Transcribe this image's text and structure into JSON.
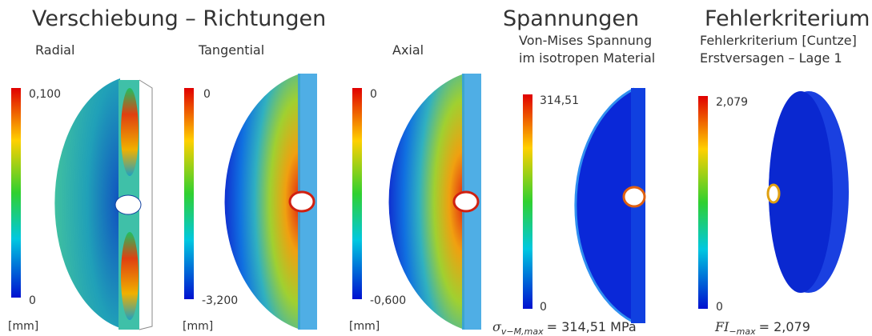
{
  "sections": [
    {
      "title": "Verschiebung – Richtungen",
      "panels": [
        {
          "label": "Radial",
          "scale_max": "0,100",
          "scale_min": "0",
          "unit": "[mm]"
        },
        {
          "label": "Tangential",
          "scale_max": "0",
          "scale_min": "-3,200",
          "unit": "[mm]"
        },
        {
          "label": "Axial",
          "scale_max": "0",
          "scale_min": "-0,600",
          "unit": "[mm]"
        }
      ]
    },
    {
      "title": "Spannungen",
      "subtitle": [
        "Von-Mises Spannung",
        "im isotropen Material"
      ],
      "scale_max": "314,51",
      "scale_min": "0",
      "formula": {
        "symbol": "σ",
        "subscript": "v−M,max",
        "rest": "= 314,51 MPa"
      }
    },
    {
      "title": "Fehlerkriterium",
      "subtitle": [
        "Fehlerkriterium [Cuntze]",
        "Erstversagen – Lage 1"
      ],
      "scale_max": "2,079",
      "scale_min": "0",
      "formula": {
        "symbol": "FI",
        "subscript": "−max",
        "rest": "= 2,079"
      }
    }
  ]
}
